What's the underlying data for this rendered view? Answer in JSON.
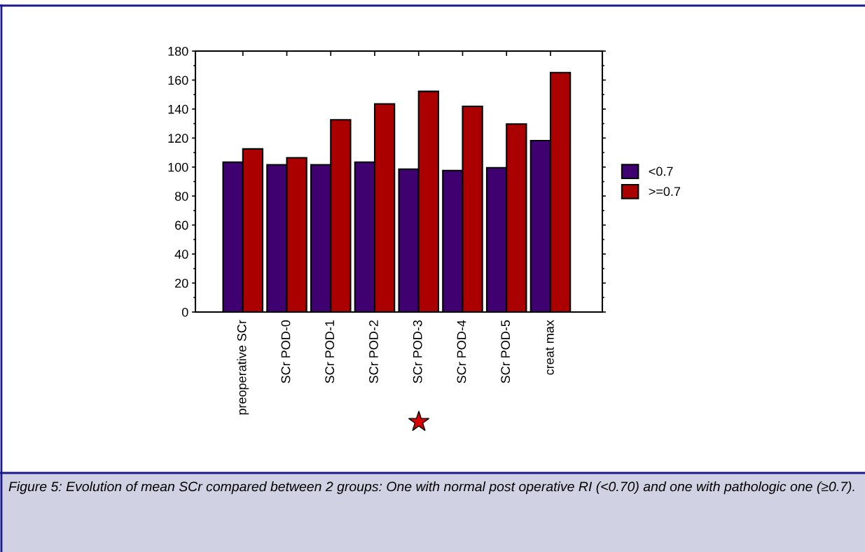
{
  "chart_data": {
    "type": "bar",
    "categories": [
      "preoperative SCr",
      "SCr POD-0",
      "SCr POD-1",
      "SCr POD-2",
      "SCr POD-3",
      "SCr POD-4",
      "SCr POD-5",
      "creat max"
    ],
    "series": [
      {
        "name": "<0.7",
        "color": "#3f0070",
        "values": [
          103.4,
          101.6,
          101.6,
          103.4,
          98.6,
          97.6,
          99.5,
          118.2
        ]
      },
      {
        "name": ">=0.7",
        "color": "#aa0000",
        "values": [
          112.5,
          106.4,
          132.6,
          143.6,
          152.2,
          141.9,
          129.7,
          165.2
        ]
      }
    ],
    "ylim": [
      0,
      180
    ],
    "yticks": [
      0,
      20,
      40,
      60,
      80,
      100,
      120,
      140,
      160,
      180
    ],
    "grid": false,
    "legend": "right",
    "annotations": [
      "Figure 5: Evolution of mean SCr compared between 2 groups: One with normal post operative RI (<0.70) and one with pathologic one (≥0.7)."
    ]
  }
}
